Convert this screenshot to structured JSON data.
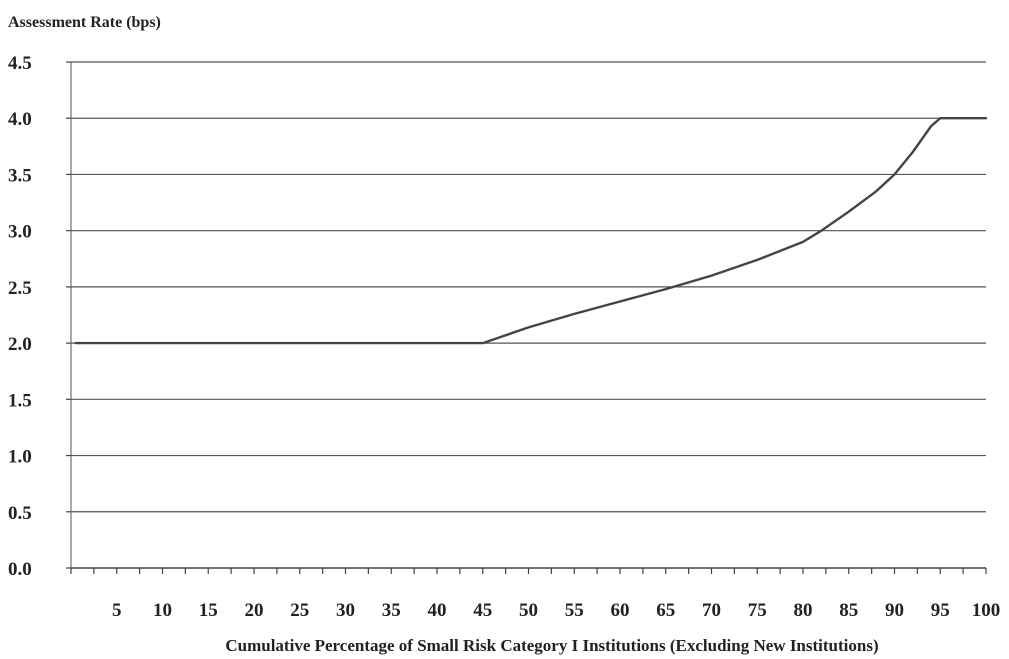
{
  "chart_data": {
    "type": "line",
    "title": "",
    "ylabel": "Assessment Rate (bps)",
    "xlabel": "Cumulative Percentage of Small Risk Category I Institutions (Excluding New Institutions)",
    "xlim": [
      0,
      100
    ],
    "ylim": [
      0,
      4.5
    ],
    "x_ticks": [
      5,
      10,
      15,
      20,
      25,
      30,
      35,
      40,
      45,
      50,
      55,
      60,
      65,
      70,
      75,
      80,
      85,
      90,
      95,
      100
    ],
    "x_tick_labels": [
      "5",
      "10",
      "15",
      "20",
      "25",
      "30",
      "35",
      "40",
      "45",
      "50",
      "55",
      "60",
      "65",
      "70",
      "75",
      "80",
      "85",
      "90",
      "95",
      "100"
    ],
    "y_ticks": [
      0.0,
      0.5,
      1.0,
      1.5,
      2.0,
      2.5,
      3.0,
      3.5,
      4.0,
      4.5
    ],
    "y_tick_labels": [
      "0.0",
      "0.5",
      "1.0",
      "1.5",
      "2.0",
      "2.5",
      "3.0",
      "3.5",
      "4.0",
      "4.5"
    ],
    "grid": "horizontal",
    "legend": "none",
    "series": [
      {
        "color": "#444444",
        "x": [
          0.5,
          10,
          20,
          30,
          40,
          45,
          50,
          55,
          60,
          65,
          70,
          75,
          80,
          82,
          85,
          88,
          90,
          92,
          94,
          95,
          100
        ],
        "y": [
          2.0,
          2.0,
          2.0,
          2.0,
          2.0,
          2.0,
          2.14,
          2.26,
          2.37,
          2.48,
          2.6,
          2.74,
          2.9,
          3.0,
          3.17,
          3.35,
          3.5,
          3.7,
          3.93,
          4.0,
          4.0
        ]
      }
    ]
  }
}
